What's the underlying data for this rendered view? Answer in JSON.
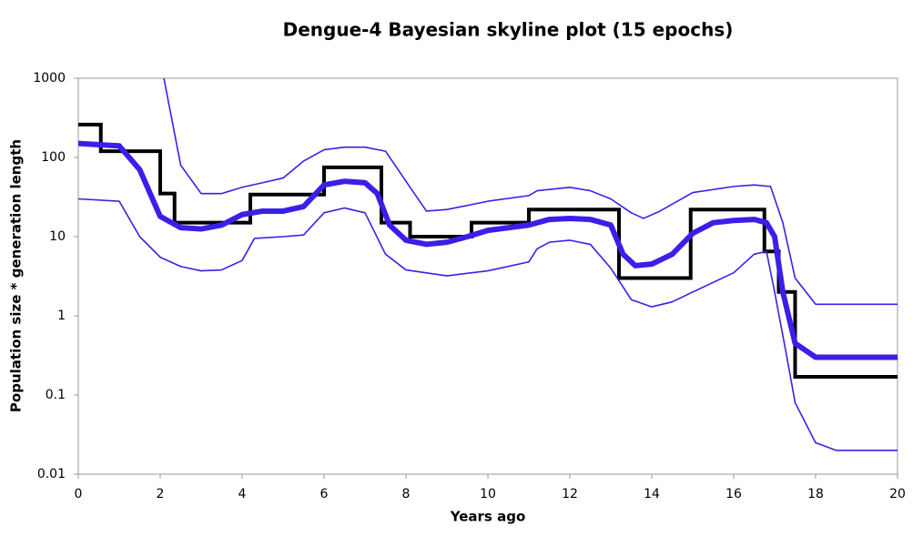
{
  "chart_data": {
    "type": "line",
    "title": "Dengue-4 Bayesian skyline plot (15 epochs)",
    "x_label": "Years ago",
    "y_label": "Population size * generation length",
    "xlim": [
      0,
      20
    ],
    "xticks": [
      0,
      2,
      4,
      6,
      8,
      10,
      12,
      14,
      16,
      18,
      20
    ],
    "ylim": [
      0.01,
      1000
    ],
    "yticks": [
      1000,
      100,
      10,
      1,
      0.1,
      0.01
    ],
    "y_scale": "log",
    "series": [
      {
        "color": "#000000",
        "width": 4,
        "step": true,
        "x": [
          0,
          0.55,
          2.0,
          2.35,
          4.2,
          6.0,
          7.4,
          8.1,
          9.6,
          11.0,
          13.2,
          14.95,
          16.75,
          17.1,
          17.5,
          20
        ],
        "values": [
          260,
          120,
          35,
          15,
          34,
          75,
          15,
          10,
          15,
          22,
          3,
          22,
          6.5,
          2,
          0.17,
          0.17
        ]
      },
      {
        "color": "#3a1fe8",
        "width": 6,
        "x": [
          0,
          1,
          1.5,
          2,
          2.5,
          3,
          3.5,
          4,
          4.5,
          5,
          5.5,
          6,
          6.5,
          7,
          7.3,
          7.6,
          8,
          8.5,
          9,
          9.5,
          10,
          11,
          11.5,
          12,
          12.5,
          13,
          13.3,
          13.6,
          14,
          14.5,
          15,
          15.5,
          16,
          16.5,
          16.8,
          17,
          17.2,
          17.5,
          18,
          20
        ],
        "values": [
          150,
          140,
          70,
          18,
          13,
          12.5,
          14,
          19,
          21,
          21,
          24,
          45,
          50,
          48,
          35,
          14,
          9,
          8,
          8.5,
          10,
          12,
          14,
          16.5,
          17,
          16.5,
          14,
          6,
          4.3,
          4.5,
          6,
          11,
          15,
          16,
          16.5,
          15,
          10,
          2,
          0.45,
          0.3,
          0.3
        ]
      },
      {
        "color": "#3a1fe8",
        "width": 1.6,
        "x": [
          2.09,
          2.5,
          3,
          3.5,
          4,
          4.5,
          5,
          5.5,
          6,
          6.5,
          7,
          7.5,
          8,
          8.5,
          9,
          10,
          11,
          11.2,
          12,
          12.5,
          13,
          13.5,
          13.8,
          14.2,
          15,
          16,
          16.5,
          16.9,
          17.2,
          17.5,
          18,
          20
        ],
        "values": [
          1000,
          80,
          35,
          35,
          42,
          48,
          55,
          90,
          125,
          135,
          135,
          120,
          50,
          21,
          22,
          28,
          33,
          38,
          42,
          38,
          30,
          20,
          17,
          21,
          36,
          43,
          45,
          43,
          15,
          3,
          1.4,
          1.4
        ]
      },
      {
        "color": "#3a1fe8",
        "width": 1.6,
        "x": [
          0,
          1,
          1.5,
          2,
          2.5,
          3,
          3.5,
          4,
          4.3,
          5,
          5.5,
          6,
          6.5,
          7,
          7.5,
          8,
          9,
          10,
          11,
          11.2,
          11.5,
          12,
          12.5,
          13,
          13.5,
          14,
          14.5,
          15,
          16,
          16.5,
          16.8,
          17,
          17.3,
          17.5,
          18,
          18.5,
          20
        ],
        "values": [
          30,
          28,
          10,
          5.5,
          4.2,
          3.7,
          3.8,
          5,
          9.5,
          10,
          10.5,
          20,
          23,
          20,
          6,
          3.8,
          3.2,
          3.7,
          4.8,
          7,
          8.5,
          9,
          8,
          4,
          1.6,
          1.3,
          1.5,
          2,
          3.5,
          6,
          6.5,
          2,
          0.3,
          0.08,
          0.025,
          0.02,
          0.02
        ]
      }
    ]
  }
}
